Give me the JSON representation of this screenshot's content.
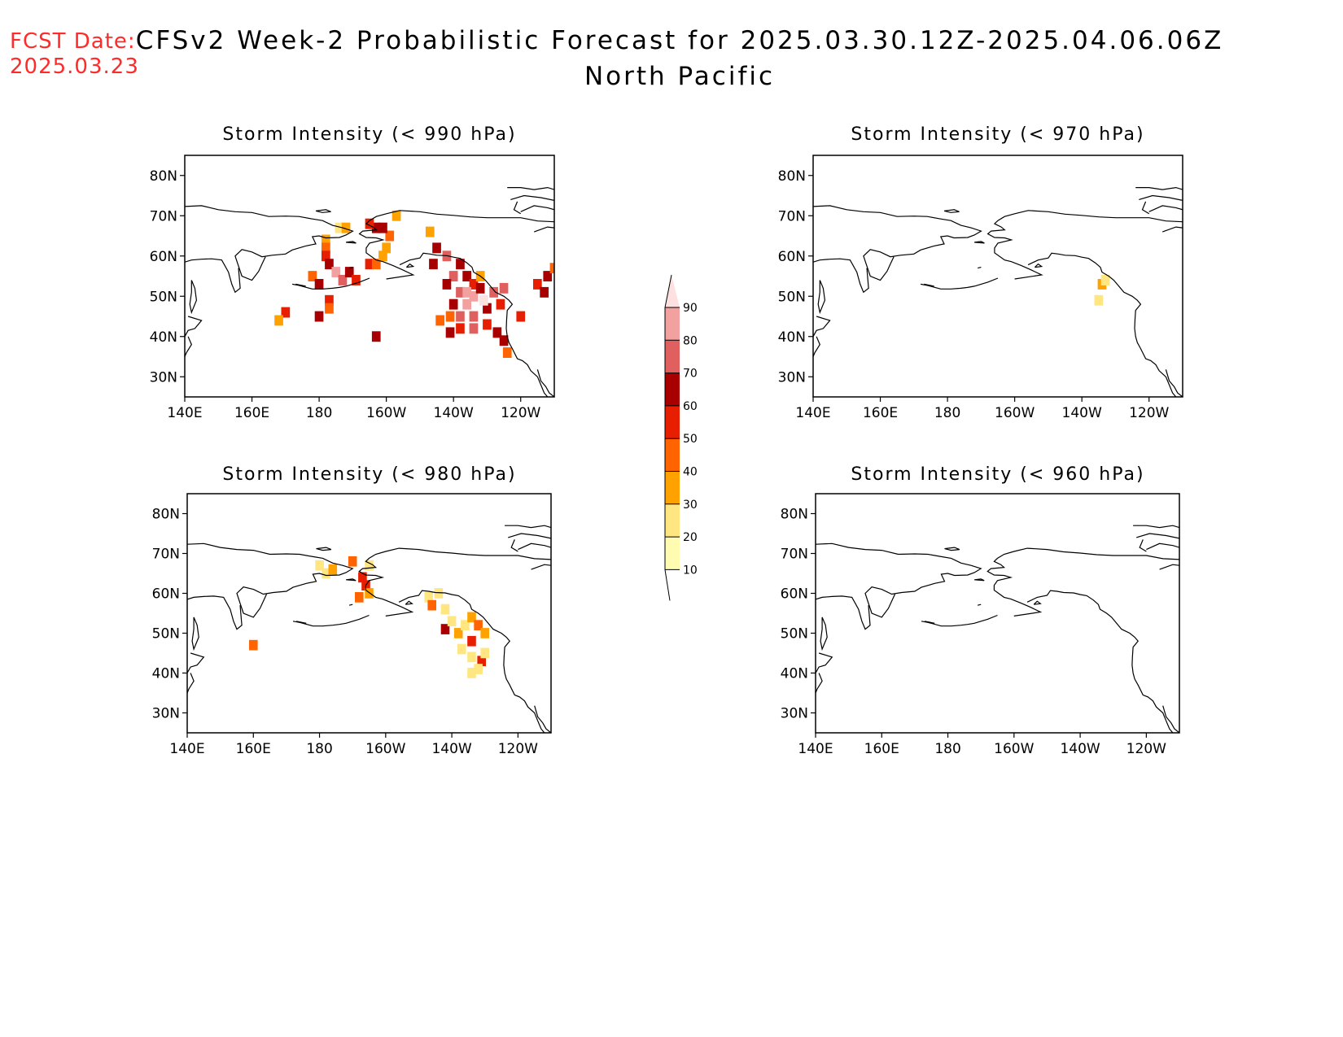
{
  "header": {
    "fcst_label": "FCST Date:",
    "fcst_date": "2025.03.23",
    "title": "CFSv2 Week-2 Probabilistic Forecast for 2025.03.30.12Z-2025.04.06.06Z",
    "region": "North Pacific"
  },
  "axes": {
    "lon_ticks": [
      "140E",
      "160E",
      "180",
      "160W",
      "140W",
      "120W"
    ],
    "lat_ticks": [
      "80N",
      "70N",
      "60N",
      "50N",
      "40N",
      "30N"
    ],
    "lon_range": [
      140,
      250
    ],
    "lat_range": [
      25,
      85
    ]
  },
  "colorbar": {
    "levels": [
      "10",
      "20",
      "30",
      "40",
      "50",
      "60",
      "70",
      "80",
      "90"
    ],
    "colors": [
      "#fffbb0",
      "#ffe680",
      "#ffa200",
      "#ff6400",
      "#e81e00",
      "#a80000",
      "#e06060",
      "#f2a0a0",
      "#fde0e0"
    ]
  },
  "panels": [
    {
      "id": "p990",
      "title": "Storm Intensity (< 990 hPa)",
      "cells": [
        [
          182,
          64,
          2
        ],
        [
          182,
          62,
          3
        ],
        [
          182,
          60,
          4
        ],
        [
          183,
          58,
          5
        ],
        [
          185,
          56,
          7
        ],
        [
          187,
          54,
          6
        ],
        [
          189,
          56,
          5
        ],
        [
          191,
          54,
          4
        ],
        [
          186,
          67,
          1
        ],
        [
          188,
          67,
          2
        ],
        [
          195,
          58,
          4
        ],
        [
          197,
          58,
          3
        ],
        [
          199,
          60,
          2
        ],
        [
          200,
          62,
          2
        ],
        [
          201,
          65,
          3
        ],
        [
          199,
          67,
          5
        ],
        [
          197,
          67,
          5
        ],
        [
          195,
          68,
          4
        ],
        [
          203,
          70,
          2
        ],
        [
          178,
          55,
          3
        ],
        [
          180,
          53,
          5
        ],
        [
          183,
          49,
          4
        ],
        [
          183,
          47,
          3
        ],
        [
          180,
          45,
          5
        ],
        [
          170,
          46,
          4
        ],
        [
          168,
          44,
          2
        ],
        [
          197,
          40,
          5
        ],
        [
          213,
          66,
          2
        ],
        [
          215,
          62,
          5
        ],
        [
          218,
          60,
          6
        ],
        [
          222,
          58,
          5
        ],
        [
          214,
          58,
          5
        ],
        [
          220,
          55,
          6
        ],
        [
          224,
          55,
          5
        ],
        [
          226,
          53,
          4
        ],
        [
          228,
          55,
          2
        ],
        [
          218,
          53,
          5
        ],
        [
          222,
          51,
          6
        ],
        [
          226,
          50,
          7
        ],
        [
          224,
          48,
          7
        ],
        [
          220,
          48,
          5
        ],
        [
          219,
          45,
          3
        ],
        [
          222,
          45,
          6
        ],
        [
          226,
          45,
          6
        ],
        [
          230,
          47,
          5
        ],
        [
          232,
          51,
          6
        ],
        [
          234,
          48,
          4
        ],
        [
          235,
          52,
          6
        ],
        [
          230,
          43,
          4
        ],
        [
          226,
          42,
          6
        ],
        [
          222,
          42,
          4
        ],
        [
          219,
          41,
          5
        ],
        [
          216,
          44,
          3
        ],
        [
          233,
          41,
          5
        ],
        [
          235,
          39,
          5
        ],
        [
          236,
          36,
          3
        ],
        [
          240,
          45,
          4
        ],
        [
          245,
          53,
          4
        ],
        [
          247,
          51,
          5
        ],
        [
          248,
          55,
          5
        ],
        [
          250,
          57,
          3
        ],
        [
          224,
          51,
          7
        ],
        [
          229,
          49,
          8
        ],
        [
          228,
          52,
          5
        ]
      ]
    },
    {
      "id": "p970",
      "title": "Storm Intensity (< 970 hPa)",
      "cells": [
        [
          226,
          53,
          2
        ],
        [
          225,
          49,
          1
        ],
        [
          227,
          54,
          1
        ]
      ]
    },
    {
      "id": "p980",
      "title": "Storm Intensity (< 980 hPa)",
      "cells": [
        [
          180,
          67,
          1
        ],
        [
          182,
          65,
          1
        ],
        [
          184,
          66,
          2
        ],
        [
          190,
          68,
          3
        ],
        [
          193,
          64,
          4
        ],
        [
          194,
          62,
          4
        ],
        [
          192,
          59,
          3
        ],
        [
          195,
          60,
          2
        ],
        [
          195,
          67,
          1
        ],
        [
          160,
          47,
          3
        ],
        [
          213,
          59,
          1
        ],
        [
          214,
          57,
          3
        ],
        [
          216,
          60,
          1
        ],
        [
          218,
          56,
          1
        ],
        [
          218,
          51,
          5
        ],
        [
          220,
          53,
          1
        ],
        [
          222,
          50,
          2
        ],
        [
          224,
          52,
          1
        ],
        [
          226,
          54,
          2
        ],
        [
          228,
          52,
          3
        ],
        [
          230,
          50,
          2
        ],
        [
          226,
          48,
          4
        ],
        [
          223,
          46,
          1
        ],
        [
          226,
          44,
          1
        ],
        [
          229,
          43,
          4
        ],
        [
          230,
          45,
          1
        ],
        [
          228,
          41,
          1
        ],
        [
          226,
          40,
          1
        ]
      ]
    },
    {
      "id": "p960",
      "title": "Storm Intensity (< 960 hPa)",
      "cells": []
    }
  ]
}
